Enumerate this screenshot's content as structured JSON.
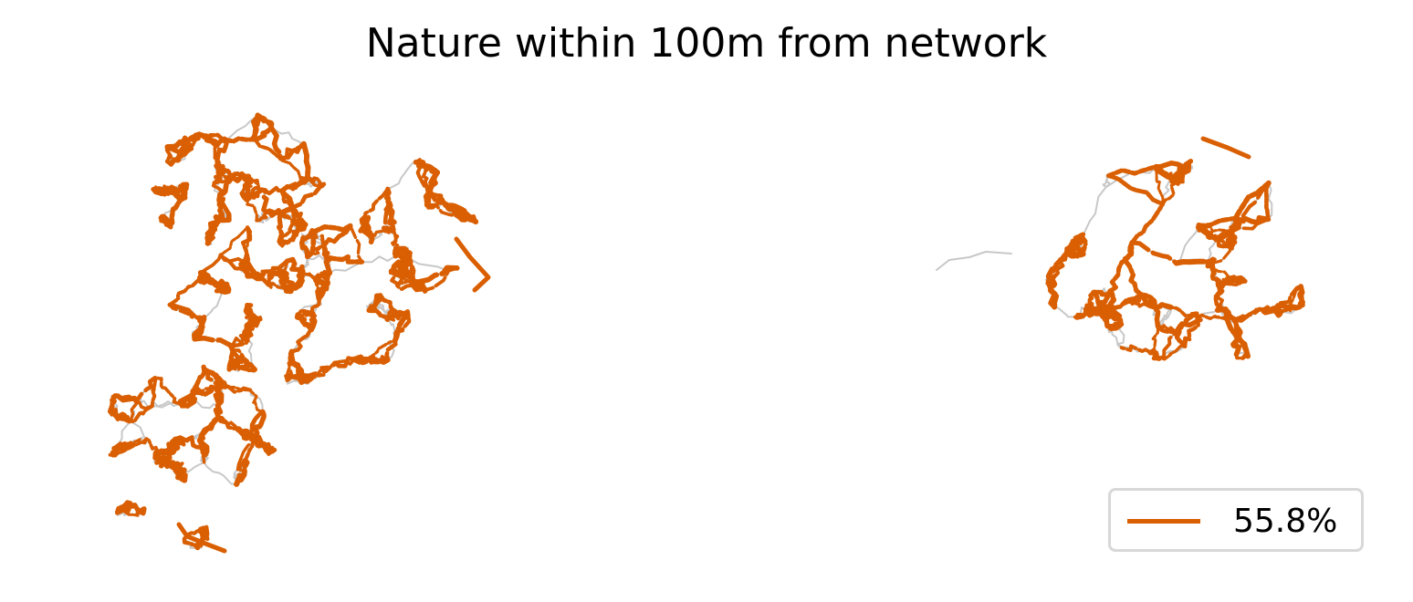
{
  "title": "Nature within 100m from network",
  "legend": {
    "entries": [
      {
        "label": "55.8%",
        "color": "#d95f02"
      }
    ]
  },
  "colors": {
    "highlight": "#d95f02",
    "network": "#c8c8c8"
  }
}
